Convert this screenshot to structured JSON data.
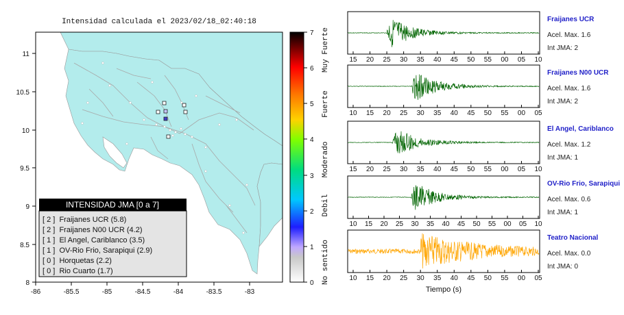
{
  "map": {
    "title": "Intensidad calculada el 2023/02/18_02:40:18",
    "x_ticks": [
      "-86",
      "-85.5",
      "-85",
      "-84.5",
      "-84",
      "-83.5",
      "-83"
    ],
    "y_ticks": [
      "11",
      "10.5",
      "10",
      "9.5",
      "9",
      "8.5",
      "8"
    ],
    "colorbar": {
      "ticks": [
        "7",
        "6",
        "5",
        "4",
        "3",
        "2",
        "1",
        "0"
      ],
      "labels": [
        "Muy Fuerte",
        "Fuerte",
        "Moderado",
        "Debil",
        "No sentido"
      ]
    },
    "legend": {
      "title": "INTENSIDAD JMA [0 a 7]",
      "entries": [
        "[ 2 ]  Fraijanes UCR (5.8)",
        "[ 2 ]  Fraijanes N00 UCR (4.2)",
        "[ 1 ]  El Angel, Cariblanco (3.5)",
        "[ 1 ]  OV-Rio Frio, Sarapiqui (2.9)",
        "[ 0 ]  Horquetas (2.2)",
        "[ 0 ]  Rio Cuarto (1.7)"
      ]
    },
    "colors": {
      "land": "#b3ecec",
      "sea": "#ffffff"
    }
  },
  "waveforms": {
    "xlabel": "Tiempo (s)",
    "panels": [
      {
        "name": "Fraijanes UCR",
        "accel": "Acel. Max. 1.6",
        "int": "Int JMA: 2",
        "ticks": [
          "15",
          "20",
          "25",
          "30",
          "35",
          "40",
          "45",
          "50",
          "55",
          "00",
          "05",
          "10"
        ],
        "color": "#006400",
        "onset": 0.2,
        "amp": 0.95
      },
      {
        "name": "Fraijanes N00 UCR",
        "accel": "Acel. Max. 1.6",
        "int": "Int JMA: 2",
        "ticks": [
          "10",
          "15",
          "20",
          "25",
          "30",
          "35",
          "40",
          "45",
          "50",
          "55",
          "00",
          "05"
        ],
        "color": "#006400",
        "onset": 0.33,
        "amp": 0.95
      },
      {
        "name": "El Angel, Cariblanco",
        "accel": "Acel. Max. 1.2",
        "int": "Int JMA: 1",
        "ticks": [
          "15",
          "20",
          "25",
          "30",
          "35",
          "40",
          "45",
          "50",
          "55",
          "00",
          "05",
          "10"
        ],
        "color": "#006400",
        "onset": 0.23,
        "amp": 0.9
      },
      {
        "name": "OV-Rio Frio, Sarapiqui",
        "accel": "Acel. Max. 0.6",
        "int": "Int JMA: 1",
        "ticks": [
          "10",
          "15",
          "20",
          "25",
          "30",
          "35",
          "40",
          "45",
          "50",
          "55",
          "00",
          "05",
          "10"
        ],
        "color": "#006400",
        "onset": 0.33,
        "amp": 0.9
      },
      {
        "name": "Teatro Nacional",
        "accel": "Acel. Max. 0.0",
        "int": "Int JMA: 0",
        "ticks": [
          "10",
          "15",
          "20",
          "25",
          "30",
          "35",
          "40",
          "45",
          "50",
          "55",
          "00",
          "05"
        ],
        "color": "#ffa500",
        "onset": 0.38,
        "amp": 0.85
      }
    ]
  }
}
